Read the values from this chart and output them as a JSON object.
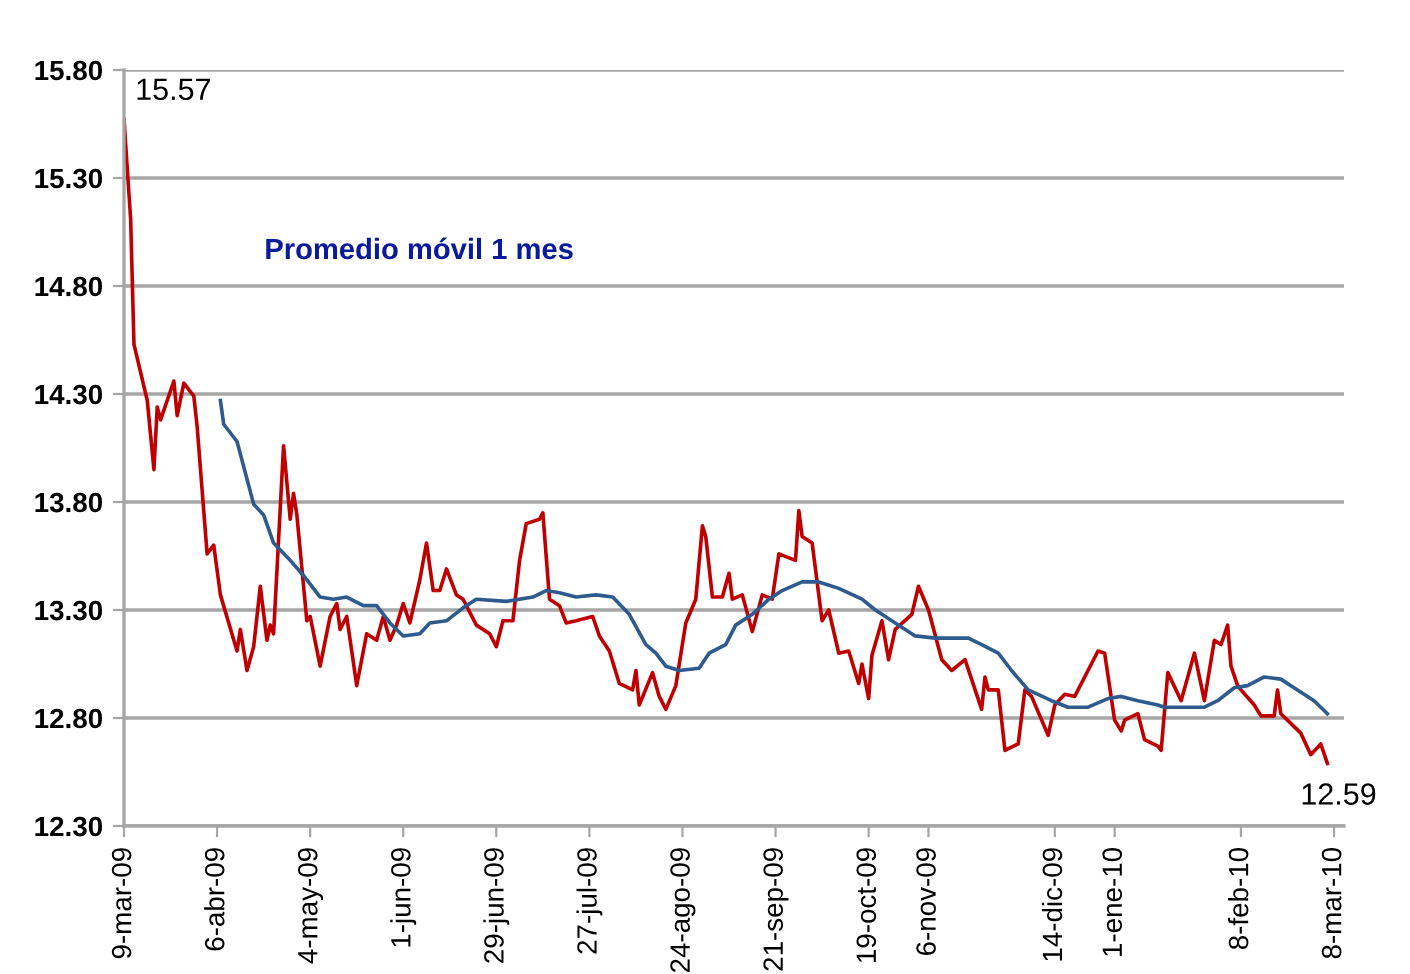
{
  "chart_data": {
    "type": "line",
    "xlim": [
      "2009-03-09",
      "2010-03-11"
    ],
    "ylim": [
      12.3,
      15.8
    ],
    "xticks": [
      {
        "value": "2009-03-09",
        "label": "9-mar-09"
      },
      {
        "value": "2009-04-06",
        "label": "6-abr-09"
      },
      {
        "value": "2009-05-04",
        "label": "4-may-09"
      },
      {
        "value": "2009-06-01",
        "label": "1-jun-09"
      },
      {
        "value": "2009-06-29",
        "label": "29-jun-09"
      },
      {
        "value": "2009-07-27",
        "label": "27-jul-09"
      },
      {
        "value": "2009-08-24",
        "label": "24-ago-09"
      },
      {
        "value": "2009-09-21",
        "label": "21-sep-09"
      },
      {
        "value": "2009-10-19",
        "label": "19-oct-09"
      },
      {
        "value": "2009-11-06",
        "label": "6-nov-09"
      },
      {
        "value": "2009-12-14",
        "label": "14-dic-09"
      },
      {
        "value": "2010-01-01",
        "label": "1-ene-10"
      },
      {
        "value": "2010-02-08",
        "label": "8-feb-10"
      },
      {
        "value": "2010-03-08",
        "label": "8-mar-10"
      }
    ],
    "yticks": [
      {
        "value": 12.3,
        "label": "12.30"
      },
      {
        "value": 12.8,
        "label": "12.80"
      },
      {
        "value": 13.3,
        "label": "13.30"
      },
      {
        "value": 13.8,
        "label": "13.80"
      },
      {
        "value": 14.3,
        "label": "14.30"
      },
      {
        "value": 14.8,
        "label": "14.80"
      },
      {
        "value": 15.3,
        "label": "15.30"
      },
      {
        "value": 15.8,
        "label": "15.80"
      }
    ],
    "grid": "y",
    "legend": false,
    "marker": "none",
    "line_style": "solid",
    "annotations": [
      {
        "text": "15.57",
        "x": "2009-03-09",
        "y": 15.57
      },
      {
        "text": "12.59",
        "x": "2010-03-06",
        "y": 12.59
      }
    ],
    "series": [
      {
        "color": "#c00000",
        "x": [
          "2009-03-09",
          "2009-03-11",
          "2009-03-12",
          "2009-03-16",
          "2009-03-18",
          "2009-03-19",
          "2009-03-20",
          "2009-03-24",
          "2009-03-25",
          "2009-03-27",
          "2009-03-30",
          "2009-03-31",
          "2009-04-03",
          "2009-04-05",
          "2009-04-07",
          "2009-04-12",
          "2009-04-13",
          "2009-04-15",
          "2009-04-17",
          "2009-04-19",
          "2009-04-21",
          "2009-04-22",
          "2009-04-23",
          "2009-04-26",
          "2009-04-28",
          "2009-04-29",
          "2009-04-30",
          "2009-05-03",
          "2009-05-04",
          "2009-05-07",
          "2009-05-10",
          "2009-05-12",
          "2009-05-13",
          "2009-05-15",
          "2009-05-18",
          "2009-05-21",
          "2009-05-24",
          "2009-05-26",
          "2009-05-28",
          "2009-05-30",
          "2009-06-01",
          "2009-06-03",
          "2009-06-06",
          "2009-06-08",
          "2009-06-10",
          "2009-06-12",
          "2009-06-14",
          "2009-06-17",
          "2009-06-19",
          "2009-06-23",
          "2009-06-27",
          "2009-06-29",
          "2009-07-01",
          "2009-07-04",
          "2009-07-06",
          "2009-07-08",
          "2009-07-12",
          "2009-07-13",
          "2009-07-14",
          "2009-07-15",
          "2009-07-18",
          "2009-07-20",
          "2009-07-23",
          "2009-07-28",
          "2009-07-30",
          "2009-08-02",
          "2009-08-05",
          "2009-08-09",
          "2009-08-10",
          "2009-08-11",
          "2009-08-15",
          "2009-08-17",
          "2009-08-19",
          "2009-08-22",
          "2009-08-25",
          "2009-08-28",
          "2009-08-30",
          "2009-08-31",
          "2009-09-02",
          "2009-09-05",
          "2009-09-07",
          "2009-09-08",
          "2009-09-11",
          "2009-09-14",
          "2009-09-17",
          "2009-09-20",
          "2009-09-22",
          "2009-09-27",
          "2009-09-28",
          "2009-09-29",
          "2009-10-02",
          "2009-10-05",
          "2009-10-07",
          "2009-10-10",
          "2009-10-13",
          "2009-10-16",
          "2009-10-17",
          "2009-10-19",
          "2009-10-20",
          "2009-10-23",
          "2009-10-25",
          "2009-10-27",
          "2009-11-01",
          "2009-11-03",
          "2009-11-06",
          "2009-11-10",
          "2009-11-13",
          "2009-11-17",
          "2009-11-22",
          "2009-11-23",
          "2009-11-24",
          "2009-11-27",
          "2009-11-29",
          "2009-12-03",
          "2009-12-05",
          "2009-12-07",
          "2009-12-12",
          "2009-12-14",
          "2009-12-17",
          "2009-12-20",
          "2009-12-25",
          "2009-12-27",
          "2009-12-29",
          "2010-01-01",
          "2010-01-03",
          "2010-01-04",
          "2010-01-08",
          "2010-01-10",
          "2010-01-14",
          "2010-01-15",
          "2010-01-17",
          "2010-01-21",
          "2010-01-25",
          "2010-01-28",
          "2010-01-31",
          "2010-02-02",
          "2010-02-04",
          "2010-02-05",
          "2010-02-07",
          "2010-02-08",
          "2010-02-12",
          "2010-02-14",
          "2010-02-18",
          "2010-02-19",
          "2010-02-20",
          "2010-02-24",
          "2010-02-26",
          "2010-03-01",
          "2010-03-04",
          "2010-03-06"
        ],
        "values": [
          15.57,
          15.11,
          14.53,
          14.27,
          13.95,
          14.24,
          14.18,
          14.36,
          14.2,
          14.35,
          14.29,
          14.15,
          13.56,
          13.6,
          13.37,
          13.11,
          13.21,
          13.02,
          13.13,
          13.41,
          13.16,
          13.23,
          13.19,
          14.06,
          13.72,
          13.84,
          13.74,
          13.25,
          13.27,
          13.04,
          13.27,
          13.33,
          13.21,
          13.27,
          12.95,
          13.19,
          13.16,
          13.27,
          13.16,
          13.23,
          13.33,
          13.24,
          13.44,
          13.61,
          13.39,
          13.39,
          13.49,
          13.37,
          13.35,
          13.23,
          13.19,
          13.13,
          13.25,
          13.25,
          13.53,
          13.7,
          13.72,
          13.75,
          13.55,
          13.35,
          13.32,
          13.24,
          13.25,
          13.27,
          13.18,
          13.11,
          12.96,
          12.93,
          13.02,
          12.86,
          13.01,
          12.9,
          12.84,
          12.95,
          13.24,
          13.35,
          13.69,
          13.64,
          13.36,
          13.36,
          13.47,
          13.35,
          13.37,
          13.2,
          13.37,
          13.35,
          13.56,
          13.53,
          13.76,
          13.64,
          13.61,
          13.25,
          13.3,
          13.1,
          13.11,
          12.96,
          13.05,
          12.89,
          13.09,
          13.25,
          13.07,
          13.21,
          13.28,
          13.41,
          13.3,
          13.07,
          13.02,
          13.07,
          12.84,
          12.99,
          12.93,
          12.93,
          12.65,
          12.68,
          12.93,
          12.9,
          12.72,
          12.86,
          12.91,
          12.9,
          13.05,
          13.11,
          13.1,
          12.79,
          12.74,
          12.79,
          12.82,
          12.7,
          12.67,
          12.65,
          13.01,
          12.88,
          13.1,
          12.88,
          13.16,
          13.14,
          13.23,
          13.04,
          12.95,
          12.93,
          12.86,
          12.81,
          12.81,
          12.93,
          12.82,
          12.76,
          12.73,
          12.63,
          12.68,
          12.59
        ]
      },
      {
        "name": "Promedio móvil 1 mes",
        "color": "#2e5a8e",
        "x": [
          "2009-04-07",
          "2009-04-08",
          "2009-04-12",
          "2009-04-17",
          "2009-04-20",
          "2009-04-23",
          "2009-04-28",
          "2009-05-02",
          "2009-05-07",
          "2009-05-11",
          "2009-05-15",
          "2009-05-20",
          "2009-05-24",
          "2009-05-28",
          "2009-06-01",
          "2009-06-06",
          "2009-06-09",
          "2009-06-14",
          "2009-06-19",
          "2009-06-23",
          "2009-07-02",
          "2009-07-10",
          "2009-07-14",
          "2009-07-18",
          "2009-07-23",
          "2009-07-29",
          "2009-08-03",
          "2009-08-08",
          "2009-08-13",
          "2009-08-16",
          "2009-08-19",
          "2009-08-23",
          "2009-08-29",
          "2009-09-01",
          "2009-09-06",
          "2009-09-09",
          "2009-09-14",
          "2009-09-19",
          "2009-09-23",
          "2009-09-29",
          "2009-10-04",
          "2009-10-10",
          "2009-10-17",
          "2009-10-21",
          "2009-10-23",
          "2009-10-27",
          "2009-11-02",
          "2009-11-08",
          "2009-11-18",
          "2009-11-22",
          "2009-11-27",
          "2009-12-01",
          "2009-12-06",
          "2009-12-13",
          "2009-12-18",
          "2009-12-24",
          "2009-12-30",
          "2010-01-03",
          "2010-01-08",
          "2010-01-14",
          "2010-01-16",
          "2010-01-28",
          "2010-02-01",
          "2010-02-06",
          "2010-02-10",
          "2010-02-15",
          "2010-02-20",
          "2010-02-25",
          "2010-03-02",
          "2010-03-06"
        ],
        "values": [
          14.27,
          14.16,
          14.08,
          13.79,
          13.74,
          13.61,
          13.53,
          13.46,
          13.36,
          13.35,
          13.36,
          13.32,
          13.32,
          13.24,
          13.18,
          13.19,
          13.24,
          13.25,
          13.31,
          13.35,
          13.34,
          13.36,
          13.39,
          13.38,
          13.36,
          13.37,
          13.36,
          13.28,
          13.14,
          13.1,
          13.04,
          13.02,
          13.03,
          13.1,
          13.14,
          13.23,
          13.28,
          13.35,
          13.39,
          13.43,
          13.43,
          13.4,
          13.35,
          13.3,
          13.28,
          13.24,
          13.18,
          13.17,
          13.17,
          13.14,
          13.1,
          13.02,
          12.93,
          12.88,
          12.85,
          12.85,
          12.89,
          12.9,
          12.88,
          12.86,
          12.85,
          12.85,
          12.88,
          12.94,
          12.95,
          12.99,
          12.98,
          12.93,
          12.88,
          12.82
        ]
      }
    ]
  }
}
